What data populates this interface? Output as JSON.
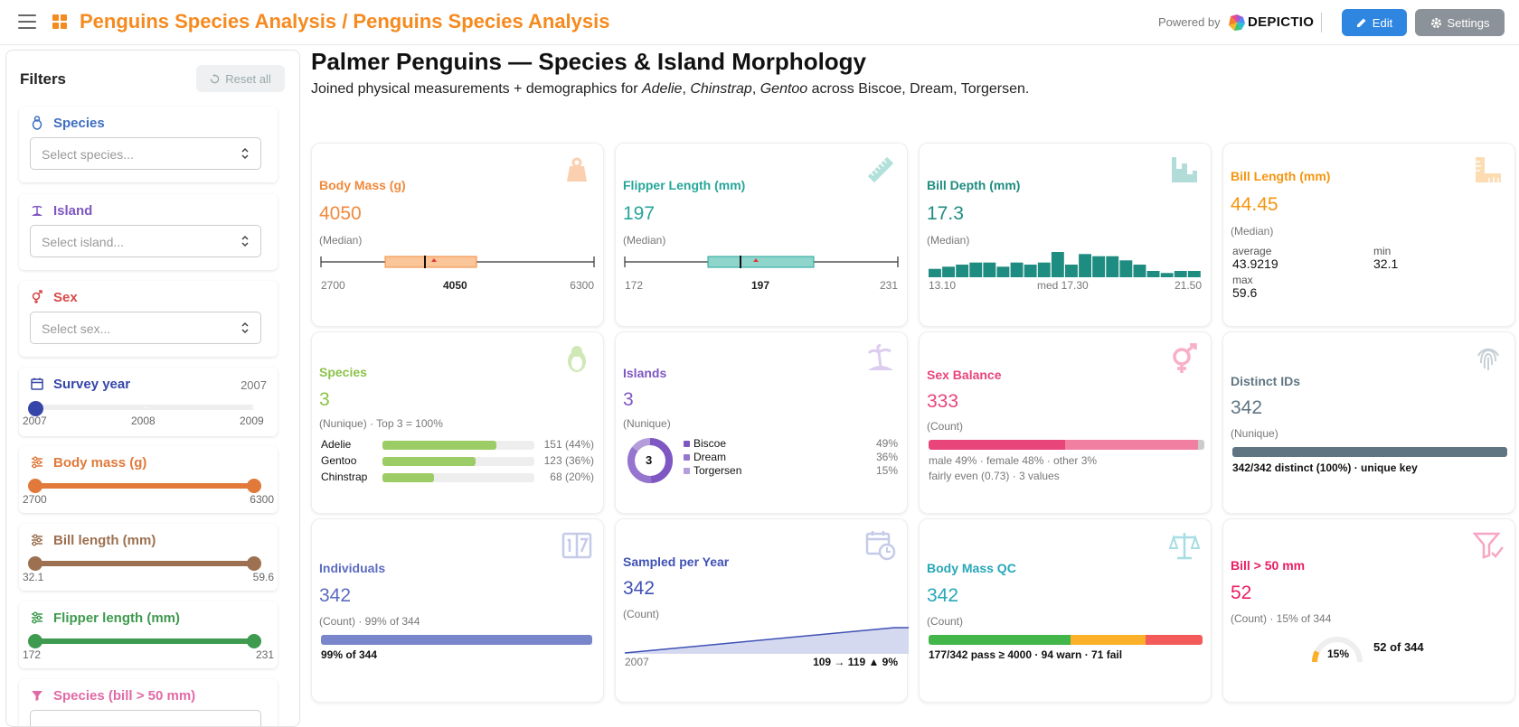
{
  "header": {
    "title": "Penguins Species Analysis / Penguins Species Analysis",
    "powered_by": "Powered by",
    "brand": "DEPICTIO",
    "edit_label": "Edit",
    "settings_label": "Settings"
  },
  "sidebar": {
    "title": "Filters",
    "reset_label": "Reset all",
    "species": {
      "label": "Species",
      "placeholder": "Select species..."
    },
    "island": {
      "label": "Island",
      "placeholder": "Select island..."
    },
    "sex": {
      "label": "Sex",
      "placeholder": "Select sex..."
    },
    "year": {
      "label": "Survey year",
      "value": "2007",
      "ticks": [
        "2007",
        "2008",
        "2009"
      ],
      "fraction": 0
    },
    "body_mass": {
      "label": "Body mass (g)",
      "min": "2700",
      "max": "6300"
    },
    "bill_length": {
      "label": "Bill length (mm)",
      "min": "32.1",
      "max": "59.6"
    },
    "flipper_length": {
      "label": "Flipper length (mm)",
      "min": "172",
      "max": "231"
    },
    "species_bill": {
      "label": "Species (bill > 50 mm)"
    }
  },
  "report": {
    "title": "Palmer Penguins — Species & Island Morphology",
    "subtitle_pre": "Joined physical measurements + demographics for ",
    "s1": "Adelie",
    "comma1": ", ",
    "s2": "Chinstrap",
    "comma2": ", ",
    "s3": "Gentoo",
    "subtitle_post": " across Biscoe, Dream, Torgersen."
  },
  "cards": {
    "body_mass": {
      "title": "Body Mass (g)",
      "value": "4050",
      "sub": "(Median)",
      "min": "2700",
      "med": "4050",
      "max": "6300",
      "color": "#f08a3c"
    },
    "flipper": {
      "title": "Flipper Length (mm)",
      "value": "197",
      "sub": "(Median)",
      "min": "172",
      "med": "197",
      "max": "231",
      "color": "#26a69a"
    },
    "bill_depth": {
      "title": "Bill Depth (mm)",
      "value": "17.3",
      "sub": "(Median)",
      "min": "13.10",
      "med": "med 17.30",
      "max": "21.50",
      "hist": [
        4,
        5,
        6,
        7,
        7,
        5,
        7,
        6,
        7,
        12,
        6,
        11,
        10,
        10,
        8,
        6,
        3,
        2,
        3,
        3
      ],
      "color": "#1e8c80"
    },
    "bill_length": {
      "title": "Bill Length (mm)",
      "value": "44.45",
      "sub": "(Median)",
      "avg_label": "average",
      "avg": "43.9219",
      "min_label": "min",
      "min": "32.1",
      "max_label": "max",
      "max": "59.6",
      "color": "#f5950f"
    },
    "species": {
      "title": "Species",
      "value": "3",
      "sub": "(Nunique) · Top 3 = 100%",
      "rows": [
        {
          "name": "Adelie",
          "label": "151 (44%)",
          "pct": 44
        },
        {
          "name": "Gentoo",
          "label": "123 (36%)",
          "pct": 36
        },
        {
          "name": "Chinstrap",
          "label": "68 (20%)",
          "pct": 20
        }
      ],
      "color": "#8bc34a"
    },
    "islands": {
      "title": "Islands",
      "value": "3",
      "sub": "(Nunique)",
      "center": "3",
      "rows": [
        {
          "name": "Biscoe",
          "pct": "49%"
        },
        {
          "name": "Dream",
          "pct": "36%"
        },
        {
          "name": "Torgersen",
          "pct": "15%"
        }
      ],
      "color": "#7e57c2"
    },
    "sex": {
      "title": "Sex Balance",
      "value": "333",
      "sub": "(Count)",
      "line1": "male 49% · female 48% · other 3%",
      "line2": "fairly even (0.73) · 3 values",
      "color": "#e8457a"
    },
    "ids": {
      "title": "Distinct IDs",
      "value": "342",
      "sub": "(Nunique)",
      "line": "342/342 distinct (100%) · unique key",
      "color": "#5f7682"
    },
    "individuals": {
      "title": "Individuals",
      "value": "342",
      "sub": "(Count) · 99% of 344",
      "line": "99% of 344",
      "color": "#5c6bc0"
    },
    "year": {
      "title": "Sampled per Year",
      "value": "342",
      "sub": "(Count)",
      "start": "2007",
      "line": "109 → 119 ▲ 9%",
      "color": "#3f51b5"
    },
    "qc": {
      "title": "Body Mass QC",
      "value": "342",
      "sub": "(Count)",
      "line": "177/342 pass ≥ 4000 · 94 warn · 71 fail",
      "color": "#26a7b9"
    },
    "bill50": {
      "title": "Bill > 50 mm",
      "value": "52",
      "sub": "(Count) · 15% of 344",
      "gauge": "15%",
      "side": "52 of 344",
      "color": "#e91e63"
    }
  }
}
